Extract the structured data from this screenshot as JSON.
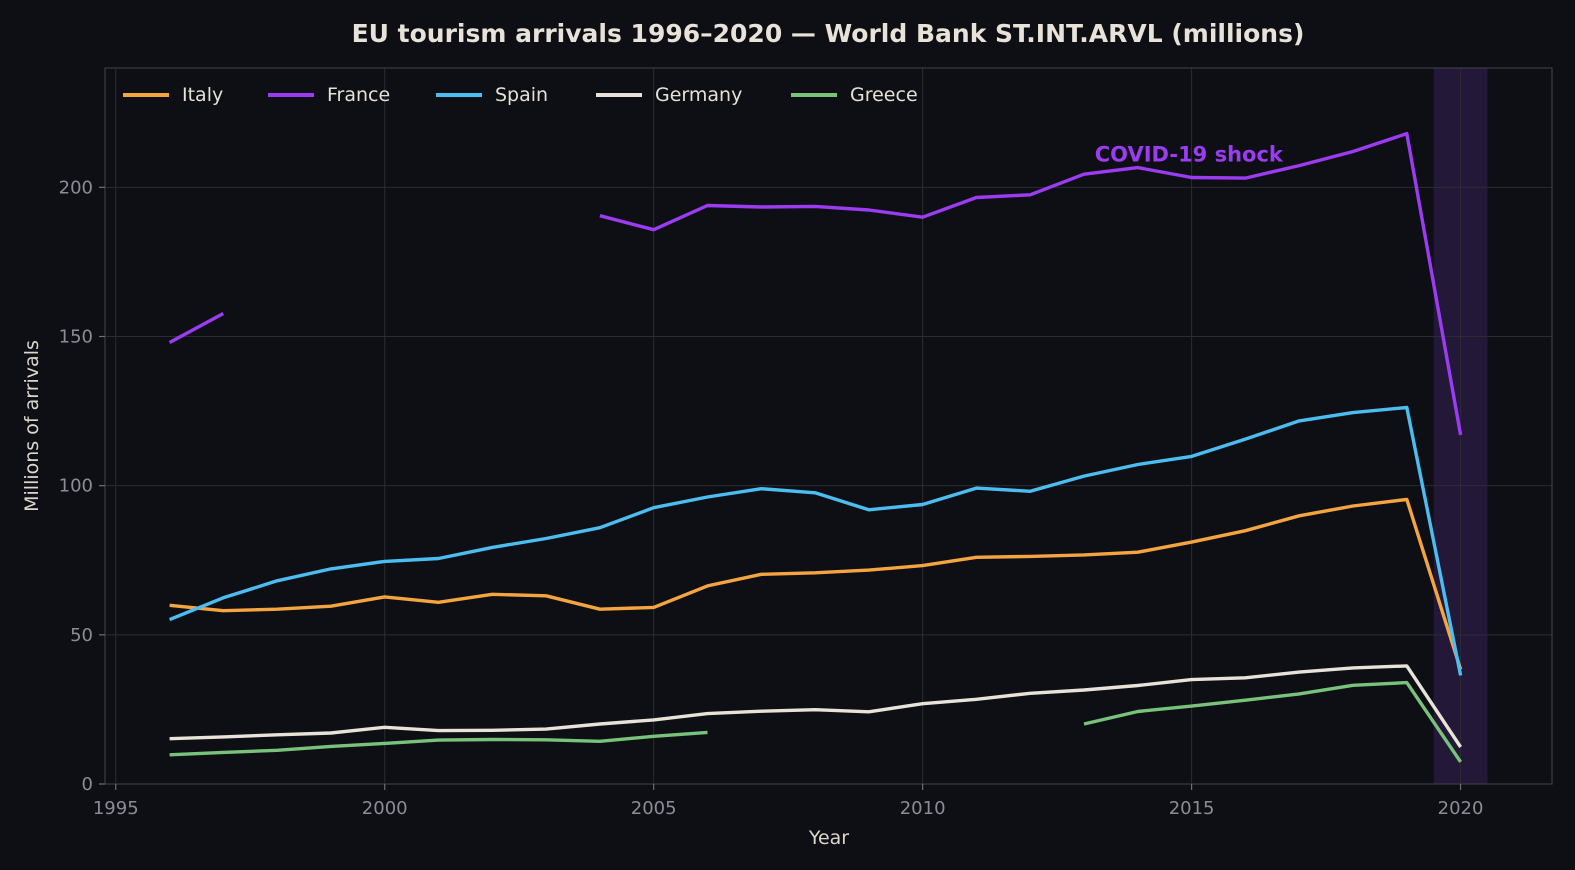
{
  "chart_data": {
    "type": "line",
    "title": "EU tourism arrivals 1996–2020 — World Bank ST.INT.ARVL (millions)",
    "xlabel": "Year",
    "ylabel": "Millions of arrivals",
    "xlim": [
      1994.8,
      2021.7
    ],
    "ylim": [
      0,
      240
    ],
    "xticks": [
      1995,
      2000,
      2005,
      2010,
      2015,
      2020
    ],
    "yticks": [
      0,
      50,
      100,
      150,
      200
    ],
    "grid": true,
    "legend_position": "top-left",
    "background": "#0e0f14",
    "highlight_band": {
      "x_from": 2019.5,
      "x_to": 2020.5,
      "color": "#231838"
    },
    "annotation": {
      "text": "COVID-19 shock",
      "x": 2013.2,
      "y": 211,
      "color": "#9b3cf2"
    },
    "series": [
      {
        "name": "Italy",
        "color": "#f5a540",
        "points": [
          [
            1996,
            59.9
          ],
          [
            1997,
            58.1
          ],
          [
            1998,
            58.6
          ],
          [
            1999,
            59.6
          ],
          [
            2000,
            62.7
          ],
          [
            2001,
            60.9
          ],
          [
            2002,
            63.6
          ],
          [
            2003,
            63.1
          ],
          [
            2004,
            58.6
          ],
          [
            2005,
            59.2
          ],
          [
            2006,
            66.4
          ],
          [
            2007,
            70.3
          ],
          [
            2008,
            70.8
          ],
          [
            2009,
            71.7
          ],
          [
            2010,
            73.2
          ],
          [
            2011,
            76.0
          ],
          [
            2012,
            76.3
          ],
          [
            2013,
            76.8
          ],
          [
            2014,
            77.7
          ],
          [
            2015,
            81.1
          ],
          [
            2016,
            84.9
          ],
          [
            2017,
            89.9
          ],
          [
            2018,
            93.2
          ],
          [
            2019,
            95.4
          ],
          [
            2020,
            38.4
          ]
        ]
      },
      {
        "name": "France",
        "color": "#9b3cf2",
        "points": [
          [
            1996,
            148.0
          ],
          [
            1997,
            157.7
          ],
          [
            1998,
            null
          ],
          [
            1999,
            null
          ],
          [
            2000,
            null
          ],
          [
            2001,
            null
          ],
          [
            2002,
            null
          ],
          [
            2003,
            null
          ],
          [
            2004,
            190.5
          ],
          [
            2005,
            185.8
          ],
          [
            2006,
            193.9
          ],
          [
            2007,
            193.4
          ],
          [
            2008,
            193.6
          ],
          [
            2009,
            192.4
          ],
          [
            2010,
            190.0
          ],
          [
            2011,
            196.6
          ],
          [
            2012,
            197.5
          ],
          [
            2013,
            204.4
          ],
          [
            2014,
            206.6
          ],
          [
            2015,
            203.3
          ],
          [
            2016,
            203.1
          ],
          [
            2017,
            207.3
          ],
          [
            2018,
            212.0
          ],
          [
            2019,
            218.0
          ],
          [
            2020,
            117.0
          ]
        ]
      },
      {
        "name": "Spain",
        "color": "#4cbdf0",
        "points": [
          [
            1996,
            55.1
          ],
          [
            1997,
            62.4
          ],
          [
            1998,
            68.1
          ],
          [
            1999,
            72.1
          ],
          [
            2000,
            74.6
          ],
          [
            2001,
            75.6
          ],
          [
            2002,
            79.3
          ],
          [
            2003,
            82.3
          ],
          [
            2004,
            85.9
          ],
          [
            2005,
            92.6
          ],
          [
            2006,
            96.2
          ],
          [
            2007,
            99.0
          ],
          [
            2008,
            97.6
          ],
          [
            2009,
            91.9
          ],
          [
            2010,
            93.7
          ],
          [
            2011,
            99.2
          ],
          [
            2012,
            98.1
          ],
          [
            2013,
            103.2
          ],
          [
            2014,
            107.1
          ],
          [
            2015,
            109.8
          ],
          [
            2016,
            115.6
          ],
          [
            2017,
            121.7
          ],
          [
            2018,
            124.5
          ],
          [
            2019,
            126.2
          ],
          [
            2020,
            36.4
          ]
        ]
      },
      {
        "name": "Germany",
        "color": "#e8e2d8",
        "points": [
          [
            1996,
            15.2
          ],
          [
            1997,
            15.8
          ],
          [
            1998,
            16.5
          ],
          [
            1999,
            17.1
          ],
          [
            2000,
            19.0
          ],
          [
            2001,
            17.9
          ],
          [
            2002,
            18.0
          ],
          [
            2003,
            18.4
          ],
          [
            2004,
            20.1
          ],
          [
            2005,
            21.5
          ],
          [
            2006,
            23.6
          ],
          [
            2007,
            24.4
          ],
          [
            2008,
            24.9
          ],
          [
            2009,
            24.2
          ],
          [
            2010,
            26.9
          ],
          [
            2011,
            28.4
          ],
          [
            2012,
            30.4
          ],
          [
            2013,
            31.5
          ],
          [
            2014,
            33.0
          ],
          [
            2015,
            35.0
          ],
          [
            2016,
            35.6
          ],
          [
            2017,
            37.5
          ],
          [
            2018,
            38.9
          ],
          [
            2019,
            39.6
          ],
          [
            2020,
            12.4
          ]
        ]
      },
      {
        "name": "Greece",
        "color": "#79c27a",
        "points": [
          [
            1996,
            9.8
          ],
          [
            1997,
            10.6
          ],
          [
            1998,
            11.3
          ],
          [
            1999,
            12.6
          ],
          [
            2000,
            13.6
          ],
          [
            2001,
            14.7
          ],
          [
            2002,
            14.9
          ],
          [
            2003,
            14.8
          ],
          [
            2004,
            14.3
          ],
          [
            2005,
            16.0
          ],
          [
            2006,
            17.3
          ],
          [
            2007,
            null
          ],
          [
            2008,
            null
          ],
          [
            2009,
            null
          ],
          [
            2010,
            null
          ],
          [
            2011,
            null
          ],
          [
            2012,
            null
          ],
          [
            2013,
            20.1
          ],
          [
            2014,
            24.3
          ],
          [
            2015,
            26.1
          ],
          [
            2016,
            28.1
          ],
          [
            2017,
            30.2
          ],
          [
            2018,
            33.1
          ],
          [
            2019,
            34.0
          ],
          [
            2020,
            7.4
          ]
        ]
      }
    ]
  }
}
